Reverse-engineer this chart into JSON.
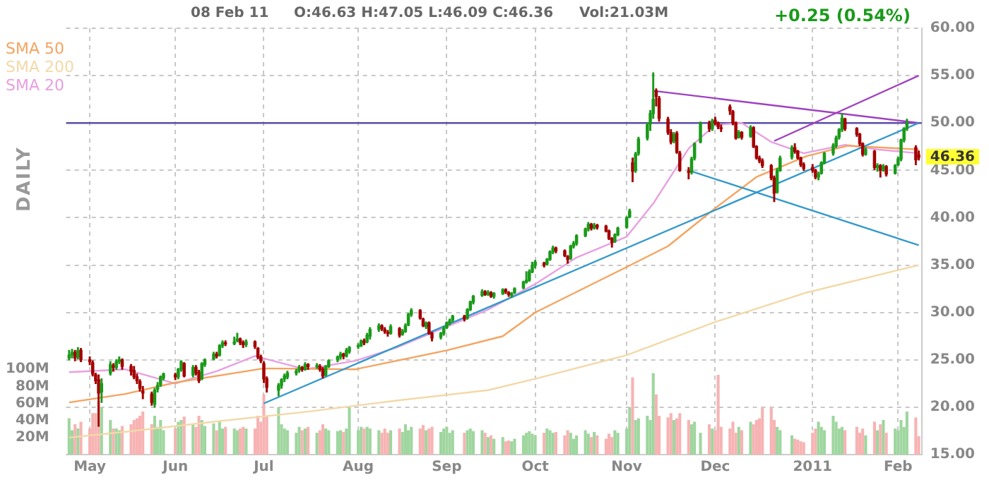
{
  "chart_data": {
    "type": "candlestick",
    "annotations": [
      "08 Feb 11",
      "O:46.63 H:47.05 L:46.09 C:46.36",
      "Vol:21.03M",
      "+0.25 (0.54%)",
      "DAILY",
      "46.36"
    ],
    "x": [
      "2010-04-26",
      "2010-04-27",
      "2010-04-28",
      "2010-04-29",
      "2010-04-30",
      "2010-05-03",
      "2010-05-04",
      "2010-05-05",
      "2010-05-06",
      "2010-05-07",
      "2010-05-10",
      "2010-05-11",
      "2010-05-12",
      "2010-05-13",
      "2010-05-14",
      "2010-05-17",
      "2010-05-18",
      "2010-05-19",
      "2010-05-20",
      "2010-05-21",
      "2010-05-24",
      "2010-05-25",
      "2010-05-26",
      "2010-05-27",
      "2010-05-28",
      "2010-06-01",
      "2010-06-02",
      "2010-06-03",
      "2010-06-04",
      "2010-06-07",
      "2010-06-08",
      "2010-06-09",
      "2010-06-10",
      "2010-06-11",
      "2010-06-14",
      "2010-06-15",
      "2010-06-16",
      "2010-06-17",
      "2010-06-18",
      "2010-06-21",
      "2010-06-22",
      "2010-06-23",
      "2010-06-24",
      "2010-06-25",
      "2010-06-28",
      "2010-06-29",
      "2010-06-30",
      "2010-07-01",
      "2010-07-02",
      "2010-07-06",
      "2010-07-07",
      "2010-07-08",
      "2010-07-09",
      "2010-07-12",
      "2010-07-13",
      "2010-07-14",
      "2010-07-15",
      "2010-07-16",
      "2010-07-19",
      "2010-07-20",
      "2010-07-21",
      "2010-07-22",
      "2010-07-23",
      "2010-07-26",
      "2010-07-27",
      "2010-07-28",
      "2010-07-29",
      "2010-07-30",
      "2010-08-02",
      "2010-08-03",
      "2010-08-04",
      "2010-08-05",
      "2010-08-06",
      "2010-08-09",
      "2010-08-10",
      "2010-08-11",
      "2010-08-12",
      "2010-08-13",
      "2010-08-16",
      "2010-08-17",
      "2010-08-18",
      "2010-08-19",
      "2010-08-20",
      "2010-08-23",
      "2010-08-24",
      "2010-08-25",
      "2010-08-26",
      "2010-08-27",
      "2010-08-30",
      "2010-08-31",
      "2010-09-01",
      "2010-09-02",
      "2010-09-03",
      "2010-09-07",
      "2010-09-08",
      "2010-09-09",
      "2010-09-10",
      "2010-09-13",
      "2010-09-14",
      "2010-09-15",
      "2010-09-16",
      "2010-09-17",
      "2010-09-20",
      "2010-09-21",
      "2010-09-22",
      "2010-09-23",
      "2010-09-24",
      "2010-09-27",
      "2010-09-28",
      "2010-09-29",
      "2010-09-30",
      "2010-10-01",
      "2010-10-04",
      "2010-10-05",
      "2010-10-06",
      "2010-10-07",
      "2010-10-08",
      "2010-10-11",
      "2010-10-12",
      "2010-10-13",
      "2010-10-14",
      "2010-10-15",
      "2010-10-18",
      "2010-10-19",
      "2010-10-20",
      "2010-10-21",
      "2010-10-22",
      "2010-10-25",
      "2010-10-26",
      "2010-10-27",
      "2010-10-28",
      "2010-10-29",
      "2010-11-01",
      "2010-11-02",
      "2010-11-03",
      "2010-11-04",
      "2010-11-05",
      "2010-11-08",
      "2010-11-09",
      "2010-11-10",
      "2010-11-11",
      "2010-11-12",
      "2010-11-15",
      "2010-11-16",
      "2010-11-17",
      "2010-11-18",
      "2010-11-19",
      "2010-11-22",
      "2010-11-23",
      "2010-11-24",
      "2010-11-26",
      "2010-11-29",
      "2010-11-30",
      "2010-12-01",
      "2010-12-02",
      "2010-12-03",
      "2010-12-06",
      "2010-12-07",
      "2010-12-08",
      "2010-12-09",
      "2010-12-10",
      "2010-12-13",
      "2010-12-14",
      "2010-12-15",
      "2010-12-16",
      "2010-12-17",
      "2010-12-20",
      "2010-12-21",
      "2010-12-22",
      "2010-12-23",
      "2010-12-27",
      "2010-12-28",
      "2010-12-29",
      "2010-12-30",
      "2010-12-31",
      "2011-01-03",
      "2011-01-04",
      "2011-01-05",
      "2011-01-06",
      "2011-01-07",
      "2011-01-10",
      "2011-01-11",
      "2011-01-12",
      "2011-01-13",
      "2011-01-14",
      "2011-01-18",
      "2011-01-19",
      "2011-01-20",
      "2011-01-21",
      "2011-01-24",
      "2011-01-25",
      "2011-01-26",
      "2011-01-27",
      "2011-01-28",
      "2011-01-31",
      "2011-02-01",
      "2011-02-02",
      "2011-02-03",
      "2011-02-04",
      "2011-02-07",
      "2011-02-08"
    ],
    "ohlc": [
      [
        25.2,
        26.0,
        25.0,
        25.5
      ],
      [
        25.5,
        26.1,
        25.2,
        25.8
      ],
      [
        25.8,
        26.0,
        24.9,
        25.2
      ],
      [
        25.3,
        26.3,
        25.1,
        26.0
      ],
      [
        26.0,
        26.2,
        24.8,
        25.0
      ],
      [
        25.0,
        25.3,
        24.5,
        24.8
      ],
      [
        24.7,
        24.9,
        23.3,
        23.5
      ],
      [
        23.4,
        23.6,
        22.5,
        22.8
      ],
      [
        22.9,
        23.4,
        18.0,
        21.5
      ],
      [
        21.6,
        23.0,
        20.5,
        22.5
      ],
      [
        23.6,
        24.8,
        23.4,
        24.5
      ],
      [
        24.4,
        24.6,
        23.8,
        24.2
      ],
      [
        24.2,
        25.0,
        24.0,
        24.8
      ],
      [
        24.8,
        25.3,
        24.6,
        25.0
      ],
      [
        25.0,
        25.1,
        24.0,
        24.3
      ],
      [
        24.3,
        24.5,
        23.4,
        23.8
      ],
      [
        23.9,
        24.3,
        23.0,
        23.2
      ],
      [
        23.2,
        23.5,
        22.5,
        22.8
      ],
      [
        22.7,
        22.9,
        21.7,
        22.0
      ],
      [
        21.7,
        22.2,
        20.9,
        21.5
      ],
      [
        21.4,
        21.6,
        20.2,
        20.5
      ],
      [
        20.3,
        22.0,
        20.0,
        21.8
      ],
      [
        21.9,
        22.6,
        21.6,
        22.3
      ],
      [
        22.4,
        23.3,
        22.2,
        23.2
      ],
      [
        23.1,
        23.6,
        22.9,
        23.5
      ],
      [
        23.4,
        23.6,
        22.9,
        23.2
      ],
      [
        23.2,
        24.1,
        23.0,
        24.0
      ],
      [
        24.0,
        24.9,
        23.8,
        24.8
      ],
      [
        24.6,
        24.7,
        23.2,
        23.3
      ],
      [
        23.4,
        24.4,
        23.2,
        24.2
      ],
      [
        24.2,
        24.4,
        23.4,
        23.6
      ],
      [
        23.7,
        23.9,
        22.6,
        22.8
      ],
      [
        23.0,
        24.7,
        22.9,
        24.6
      ],
      [
        24.5,
        25.1,
        24.3,
        25.0
      ],
      [
        25.1,
        25.8,
        25.0,
        25.6
      ],
      [
        25.6,
        25.8,
        25.2,
        25.4
      ],
      [
        25.5,
        26.6,
        25.4,
        26.5
      ],
      [
        26.5,
        27.0,
        26.3,
        26.8
      ],
      [
        26.8,
        27.0,
        26.5,
        26.7
      ],
      [
        26.7,
        27.4,
        26.6,
        26.9
      ],
      [
        27.0,
        27.8,
        26.9,
        27.2
      ],
      [
        27.2,
        27.3,
        26.6,
        26.8
      ],
      [
        26.8,
        27.0,
        26.3,
        26.6
      ],
      [
        26.6,
        27.1,
        26.4,
        26.9
      ],
      [
        26.9,
        27.0,
        26.2,
        26.4
      ],
      [
        26.2,
        26.3,
        25.1,
        25.3
      ],
      [
        25.3,
        25.5,
        24.7,
        24.9
      ],
      [
        24.6,
        24.8,
        22.6,
        23.0
      ],
      [
        23.0,
        23.2,
        21.6,
        22.1
      ],
      [
        21.8,
        22.5,
        21.2,
        22.3
      ],
      [
        22.3,
        23.0,
        22.0,
        22.9
      ],
      [
        23.0,
        23.5,
        22.7,
        23.3
      ],
      [
        23.2,
        23.8,
        23.0,
        23.6
      ],
      [
        23.6,
        24.0,
        23.4,
        23.8
      ],
      [
        23.9,
        24.4,
        23.7,
        24.2
      ],
      [
        24.2,
        24.3,
        23.8,
        24.0
      ],
      [
        24.0,
        24.7,
        23.9,
        24.5
      ],
      [
        24.5,
        24.6,
        24.0,
        24.3
      ],
      [
        24.3,
        24.6,
        24.1,
        24.4
      ],
      [
        24.3,
        24.5,
        23.8,
        24.0
      ],
      [
        24.0,
        24.2,
        23.1,
        23.3
      ],
      [
        23.4,
        24.4,
        23.3,
        24.3
      ],
      [
        24.3,
        25.0,
        24.2,
        24.9
      ],
      [
        25.0,
        25.4,
        24.8,
        25.3
      ],
      [
        25.3,
        25.8,
        25.1,
        25.6
      ],
      [
        25.6,
        25.7,
        25.1,
        25.4
      ],
      [
        25.4,
        26.2,
        25.3,
        26.0
      ],
      [
        25.9,
        26.4,
        25.7,
        26.3
      ],
      [
        26.4,
        26.7,
        26.2,
        26.5
      ],
      [
        26.5,
        27.1,
        26.4,
        27.0
      ],
      [
        27.0,
        27.2,
        26.6,
        26.8
      ],
      [
        26.9,
        27.8,
        26.8,
        27.6
      ],
      [
        27.5,
        28.4,
        27.2,
        28.2
      ],
      [
        28.2,
        28.8,
        28.0,
        28.6
      ],
      [
        28.6,
        28.7,
        28.1,
        28.3
      ],
      [
        28.2,
        28.4,
        27.8,
        28.0
      ],
      [
        27.9,
        28.1,
        27.5,
        27.8
      ],
      [
        27.8,
        28.7,
        27.7,
        28.5
      ],
      [
        28.3,
        28.4,
        27.4,
        27.6
      ],
      [
        27.7,
        28.2,
        27.6,
        28.0
      ],
      [
        28.0,
        28.8,
        27.9,
        28.6
      ],
      [
        28.7,
        29.9,
        28.6,
        29.8
      ],
      [
        29.8,
        30.4,
        29.6,
        30.2
      ],
      [
        30.2,
        30.3,
        29.3,
        29.4
      ],
      [
        29.3,
        29.4,
        28.5,
        28.6
      ],
      [
        28.5,
        29.0,
        28.3,
        28.9
      ],
      [
        28.9,
        29.0,
        27.7,
        27.8
      ],
      [
        27.8,
        27.9,
        27.0,
        27.3
      ],
      [
        27.4,
        27.9,
        27.2,
        27.8
      ],
      [
        27.8,
        28.5,
        27.6,
        28.3
      ],
      [
        28.4,
        29.0,
        28.3,
        28.9
      ],
      [
        28.9,
        29.3,
        28.7,
        29.1
      ],
      [
        29.2,
        29.7,
        29.0,
        29.6
      ],
      [
        29.6,
        29.7,
        29.1,
        29.3
      ],
      [
        29.4,
        30.4,
        29.3,
        30.3
      ],
      [
        30.3,
        31.2,
        30.2,
        31.1
      ],
      [
        31.1,
        31.8,
        30.9,
        31.7
      ],
      [
        31.8,
        32.4,
        31.7,
        32.2
      ],
      [
        32.2,
        32.3,
        31.8,
        31.9
      ],
      [
        31.9,
        32.3,
        31.8,
        32.1
      ],
      [
        32.1,
        32.2,
        31.6,
        31.7
      ],
      [
        31.7,
        32.1,
        31.5,
        32.0
      ],
      [
        32.0,
        32.5,
        31.9,
        32.4
      ],
      [
        32.4,
        32.5,
        32.0,
        32.2
      ],
      [
        32.1,
        32.2,
        31.7,
        31.9
      ],
      [
        31.8,
        32.1,
        31.6,
        32.0
      ],
      [
        32.1,
        32.6,
        32.0,
        32.5
      ],
      [
        32.6,
        33.3,
        32.5,
        33.2
      ],
      [
        33.2,
        34.3,
        33.1,
        33.4
      ],
      [
        33.4,
        34.5,
        33.3,
        34.3
      ],
      [
        34.3,
        35.3,
        34.2,
        35.0
      ],
      [
        35.0,
        35.5,
        34.7,
        35.3
      ],
      [
        35.2,
        35.3,
        34.8,
        35.0
      ],
      [
        35.1,
        35.7,
        35.0,
        35.6
      ],
      [
        35.6,
        36.5,
        35.5,
        36.4
      ],
      [
        36.4,
        37.0,
        36.2,
        36.8
      ],
      [
        36.8,
        36.9,
        36.3,
        36.5
      ],
      [
        36.5,
        36.6,
        35.9,
        36.0
      ],
      [
        35.9,
        36.0,
        35.2,
        35.6
      ],
      [
        35.7,
        37.1,
        35.6,
        37.0
      ],
      [
        37.0,
        37.5,
        36.8,
        37.3
      ],
      [
        37.3,
        38.2,
        37.1,
        38.1
      ],
      [
        38.1,
        38.9,
        38.0,
        38.8
      ],
      [
        38.8,
        39.5,
        38.6,
        39.3
      ],
      [
        39.3,
        39.4,
        38.7,
        38.9
      ],
      [
        38.9,
        39.4,
        38.8,
        39.2
      ],
      [
        39.2,
        39.3,
        38.8,
        39.0
      ],
      [
        39.1,
        39.2,
        38.5,
        38.6
      ],
      [
        38.6,
        38.7,
        37.7,
        37.8
      ],
      [
        37.8,
        37.9,
        36.9,
        37.4
      ],
      [
        37.5,
        38.3,
        37.4,
        38.2
      ],
      [
        38.2,
        39.0,
        38.1,
        38.9
      ],
      [
        39.0,
        40.1,
        38.9,
        40.0
      ],
      [
        40.1,
        40.9,
        40.0,
        40.7
      ],
      [
        45.8,
        46.3,
        43.8,
        44.9
      ],
      [
        45.0,
        46.9,
        44.8,
        46.7
      ],
      [
        46.8,
        48.5,
        46.6,
        48.3
      ],
      [
        48.4,
        50.0,
        48.2,
        49.8
      ],
      [
        49.9,
        51.3,
        49.2,
        51.0
      ],
      [
        51.0,
        55.3,
        50.5,
        52.5
      ],
      [
        53.4,
        53.6,
        51.8,
        52.8
      ],
      [
        52.6,
        52.8,
        50.2,
        50.5
      ],
      [
        50.4,
        50.6,
        48.8,
        49.0
      ],
      [
        49.0,
        49.3,
        47.8,
        48.0
      ],
      [
        48.1,
        49.0,
        47.9,
        48.8
      ],
      [
        48.9,
        49.1,
        46.8,
        46.9
      ],
      [
        46.8,
        47.0,
        44.9,
        45.0
      ],
      [
        44.9,
        45.3,
        44.1,
        44.8
      ],
      [
        44.8,
        46.4,
        44.6,
        46.2
      ],
      [
        46.3,
        47.9,
        46.1,
        47.8
      ],
      [
        48.0,
        50.1,
        47.9,
        50.0
      ],
      [
        50.0,
        50.2,
        49.1,
        49.4
      ],
      [
        49.4,
        50.4,
        49.2,
        50.2
      ],
      [
        50.3,
        50.6,
        49.8,
        50.0
      ],
      [
        50.0,
        50.1,
        49.4,
        49.6
      ],
      [
        49.5,
        49.8,
        49.1,
        49.4
      ],
      [
        51.7,
        51.9,
        50.9,
        51.3
      ],
      [
        51.2,
        51.3,
        49.8,
        50.0
      ],
      [
        50.0,
        50.1,
        48.3,
        48.4
      ],
      [
        48.5,
        49.2,
        48.4,
        49.0
      ],
      [
        49.0,
        49.1,
        48.3,
        48.5
      ],
      [
        48.6,
        49.7,
        48.5,
        49.5
      ],
      [
        49.5,
        49.6,
        47.4,
        47.5
      ],
      [
        47.5,
        47.6,
        46.2,
        46.3
      ],
      [
        46.3,
        46.5,
        45.8,
        46.0
      ],
      [
        46.0,
        46.2,
        45.3,
        45.5
      ],
      [
        45.5,
        45.6,
        44.0,
        44.2
      ],
      [
        44.2,
        44.4,
        41.7,
        42.6
      ],
      [
        42.7,
        45.2,
        42.6,
        45.0
      ],
      [
        45.0,
        46.5,
        44.9,
        46.3
      ],
      [
        46.4,
        47.6,
        46.2,
        47.4
      ],
      [
        47.4,
        47.8,
        46.8,
        47.0
      ],
      [
        47.0,
        47.1,
        46.2,
        46.3
      ],
      [
        46.3,
        46.4,
        45.4,
        45.6
      ],
      [
        45.6,
        45.8,
        45.0,
        45.2
      ],
      [
        45.3,
        45.6,
        44.8,
        45.0
      ],
      [
        45.0,
        45.1,
        44.1,
        44.3
      ],
      [
        44.3,
        44.8,
        44.0,
        44.6
      ],
      [
        44.7,
        45.9,
        44.6,
        45.8
      ],
      [
        45.8,
        46.9,
        45.7,
        46.8
      ],
      [
        46.8,
        47.8,
        46.6,
        47.6
      ],
      [
        47.6,
        48.6,
        47.4,
        48.4
      ],
      [
        48.5,
        49.4,
        48.3,
        49.3
      ],
      [
        49.3,
        51.0,
        49.1,
        50.5
      ],
      [
        50.4,
        50.5,
        49.2,
        49.4
      ],
      [
        49.4,
        49.5,
        48.6,
        48.8
      ],
      [
        48.8,
        48.9,
        47.6,
        47.8
      ],
      [
        47.8,
        47.9,
        46.5,
        46.7
      ],
      [
        46.7,
        47.4,
        46.6,
        47.2
      ],
      [
        47.0,
        47.1,
        45.1,
        45.3
      ],
      [
        45.3,
        45.7,
        44.9,
        45.5
      ],
      [
        45.5,
        45.6,
        44.3,
        45.0
      ],
      [
        45.0,
        45.6,
        44.9,
        45.4
      ],
      [
        45.4,
        45.5,
        44.4,
        44.6
      ],
      [
        44.7,
        45.6,
        44.6,
        45.5
      ],
      [
        45.6,
        46.4,
        45.5,
        46.2
      ],
      [
        46.2,
        48.3,
        46.0,
        48.2
      ],
      [
        48.2,
        49.5,
        48.0,
        49.4
      ],
      [
        49.4,
        50.4,
        49.2,
        49.9
      ],
      [
        47.4,
        47.6,
        45.6,
        46.11
      ],
      [
        46.63,
        47.05,
        46.09,
        46.36
      ]
    ],
    "series": [
      {
        "type": "bar",
        "axis": "y2",
        "values": [
          42,
          28,
          35,
          30,
          38,
          30,
          48,
          48,
          62,
          55,
          40,
          30,
          30,
          28,
          33,
          35,
          40,
          42,
          45,
          50,
          35,
          45,
          32,
          40,
          28,
          30,
          38,
          40,
          44,
          35,
          32,
          45,
          40,
          33,
          36,
          28,
          38,
          30,
          32,
          30,
          28,
          30,
          32,
          30,
          30,
          45,
          38,
          70,
          45,
          55,
          35,
          30,
          28,
          25,
          32,
          28,
          30,
          32,
          25,
          28,
          35,
          30,
          28,
          27,
          28,
          26,
          30,
          55,
          28,
          32,
          30,
          32,
          30,
          28,
          25,
          30,
          25,
          28,
          30,
          26,
          35,
          28,
          32,
          30,
          34,
          28,
          30,
          32,
          26,
          30,
          32,
          25,
          28,
          25,
          28,
          30,
          27,
          28,
          25,
          20,
          22,
          18,
          20,
          15,
          16,
          15,
          18,
          22,
          25,
          27,
          24,
          22,
          25,
          30,
          28,
          25,
          26,
          22,
          28,
          25,
          18,
          22,
          28,
          24,
          20,
          26,
          22,
          18,
          24,
          20,
          28,
          25,
          30,
          55,
          90,
          40,
          42,
          45,
          40,
          95,
          70,
          45,
          43,
          48,
          40,
          42,
          48,
          40,
          35,
          38,
          25,
          35,
          30,
          28,
          93,
          32,
          30,
          38,
          25,
          32,
          28,
          38,
          35,
          40,
          42,
          55,
          55,
          40,
          32,
          28,
          22,
          18,
          17,
          15,
          14,
          25,
          30,
          38,
          32,
          28,
          45,
          38,
          30,
          32,
          28,
          32,
          25,
          30,
          22,
          38,
          28,
          35,
          40,
          25,
          30,
          28,
          40,
          32,
          50,
          43,
          21
        ],
        "colors": [
          "#9fd69f",
          "#9fd69f",
          "#f7b3b3",
          "#9fd69f",
          "#f7b3b3",
          "#f7b3b3",
          "#f7b3b3",
          "#f7b3b3",
          "#f7b3b3",
          "#9fd69f",
          "#9fd69f",
          "#f7b3b3",
          "#9fd69f",
          "#9fd69f",
          "#f7b3b3",
          "#f7b3b3",
          "#f7b3b3",
          "#f7b3b3",
          "#f7b3b3",
          "#f7b3b3",
          "#f7b3b3",
          "#9fd69f",
          "#9fd69f",
          "#9fd69f",
          "#9fd69f",
          "#f7b3b3",
          "#9fd69f",
          "#9fd69f",
          "#f7b3b3",
          "#9fd69f",
          "#f7b3b3",
          "#f7b3b3",
          "#9fd69f",
          "#9fd69f",
          "#9fd69f",
          "#f7b3b3",
          "#9fd69f",
          "#9fd69f",
          "#f7b3b3",
          "#9fd69f",
          "#9fd69f",
          "#f7b3b3",
          "#f7b3b3",
          "#9fd69f",
          "#f7b3b3",
          "#f7b3b3",
          "#f7b3b3",
          "#f7b3b3",
          "#f7b3b3",
          "#9fd69f",
          "#9fd69f",
          "#9fd69f",
          "#9fd69f",
          "#9fd69f",
          "#9fd69f",
          "#f7b3b3",
          "#9fd69f",
          "#f7b3b3",
          "#9fd69f",
          "#f7b3b3",
          "#f7b3b3",
          "#9fd69f",
          "#9fd69f",
          "#9fd69f",
          "#9fd69f",
          "#f7b3b3",
          "#9fd69f",
          "#9fd69f",
          "#9fd69f",
          "#9fd69f",
          "#f7b3b3",
          "#9fd69f",
          "#9fd69f",
          "#9fd69f",
          "#f7b3b3",
          "#f7b3b3",
          "#f7b3b3",
          "#9fd69f",
          "#f7b3b3",
          "#9fd69f",
          "#9fd69f",
          "#9fd69f",
          "#9fd69f",
          "#f7b3b3",
          "#f7b3b3",
          "#9fd69f",
          "#f7b3b3",
          "#f7b3b3",
          "#9fd69f",
          "#9fd69f",
          "#9fd69f",
          "#9fd69f",
          "#9fd69f",
          "#f7b3b3",
          "#9fd69f",
          "#9fd69f",
          "#9fd69f",
          "#9fd69f",
          "#f7b3b3",
          "#9fd69f",
          "#f7b3b3",
          "#9fd69f",
          "#9fd69f",
          "#f7b3b3",
          "#f7b3b3",
          "#9fd69f",
          "#9fd69f",
          "#9fd69f",
          "#9fd69f",
          "#9fd69f",
          "#9fd69f",
          "#9fd69f",
          "#f7b3b3",
          "#9fd69f",
          "#9fd69f",
          "#9fd69f",
          "#f7b3b3",
          "#f7b3b3",
          "#f7b3b3",
          "#9fd69f",
          "#9fd69f",
          "#9fd69f",
          "#9fd69f",
          "#9fd69f",
          "#f7b3b3",
          "#9fd69f",
          "#f7b3b3",
          "#f7b3b3",
          "#f7b3b3",
          "#f7b3b3",
          "#9fd69f",
          "#9fd69f",
          "#9fd69f",
          "#9fd69f",
          "#f7b3b3",
          "#9fd69f",
          "#9fd69f",
          "#9fd69f",
          "#9fd69f",
          "#9fd69f",
          "#f7b3b3",
          "#f7b3b3",
          "#f7b3b3",
          "#f7b3b3",
          "#9fd69f",
          "#f7b3b3",
          "#f7b3b3",
          "#f7b3b3",
          "#9fd69f",
          "#9fd69f",
          "#9fd69f",
          "#f7b3b3",
          "#9fd69f",
          "#f7b3b3",
          "#f7b3b3",
          "#f7b3b3",
          "#f7b3b3",
          "#f7b3b3",
          "#f7b3b3",
          "#9fd69f",
          "#f7b3b3",
          "#9fd69f",
          "#f7b3b3",
          "#f7b3b3",
          "#f7b3b3",
          "#f7b3b3",
          "#f7b3b3",
          "#f7b3b3",
          "#9fd69f",
          "#9fd69f",
          "#9fd69f",
          "#f7b3b3",
          "#f7b3b3",
          "#f7b3b3",
          "#f7b3b3",
          "#f7b3b3",
          "#f7b3b3",
          "#9fd69f",
          "#9fd69f",
          "#9fd69f",
          "#9fd69f",
          "#9fd69f",
          "#9fd69f",
          "#9fd69f",
          "#f7b3b3",
          "#f7b3b3",
          "#f7b3b3",
          "#f7b3b3",
          "#9fd69f",
          "#f7b3b3",
          "#9fd69f",
          "#f7b3b3",
          "#9fd69f",
          "#f7b3b3",
          "#9fd69f",
          "#9fd69f",
          "#9fd69f",
          "#9fd69f",
          "#9fd69f",
          "#f7b3b3",
          "#f7b3b3"
        ]
      },
      {
        "type": "line",
        "name": "SMA 50",
        "color": "#f4a460",
        "x": [
          "2010-04-26",
          "2010-05-15",
          "2010-06-01",
          "2010-07-01",
          "2010-08-01",
          "2010-09-01",
          "2010-09-20",
          "2010-10-01",
          "2010-11-01",
          "2010-11-15",
          "2010-12-01",
          "2010-12-15",
          "2011-01-01",
          "2011-01-15",
          "2011-02-08"
        ],
        "values": [
          20.5,
          21.4,
          22.6,
          24.1,
          24.0,
          26.0,
          27.5,
          30.0,
          34.8,
          37.0,
          41.0,
          44.3,
          46.5,
          47.6,
          47.2
        ]
      },
      {
        "type": "line",
        "name": "SMA 200",
        "color": "#f2d9a8",
        "x": [
          "2010-04-26",
          "2010-05-15",
          "2010-06-15",
          "2010-07-15",
          "2010-08-15",
          "2010-09-15",
          "2010-10-01",
          "2010-11-01",
          "2010-12-01",
          "2011-01-01",
          "2011-02-08"
        ],
        "values": [
          16.8,
          17.4,
          18.5,
          19.5,
          20.7,
          21.8,
          23.0,
          25.5,
          29.0,
          32.1,
          35.0
        ]
      },
      {
        "type": "line",
        "name": "SMA 20",
        "color": "#e8a0e0",
        "x": [
          "2010-04-26",
          "2010-05-15",
          "2010-06-01",
          "2010-06-15",
          "2010-06-28",
          "2010-07-15",
          "2010-08-01",
          "2010-08-15",
          "2010-09-01",
          "2010-09-15",
          "2010-10-01",
          "2010-10-15",
          "2010-11-01",
          "2010-11-10",
          "2010-11-22",
          "2010-12-01",
          "2010-12-10",
          "2010-12-20",
          "2010-12-31",
          "2011-01-14",
          "2011-01-25",
          "2011-02-08"
        ],
        "values": [
          23.7,
          24.0,
          22.5,
          23.8,
          25.4,
          24.0,
          24.9,
          26.3,
          28.5,
          30.3,
          33.0,
          35.8,
          38.0,
          41.5,
          47.3,
          49.8,
          50.0,
          48.0,
          46.8,
          47.7,
          47.2,
          46.8
        ]
      },
      {
        "type": "line",
        "color": "#3399cc",
        "x": [
          "2010-07-01",
          "2011-02-08"
        ],
        "values": [
          20.4,
          50.0
        ]
      },
      {
        "type": "line",
        "color": "#3399cc",
        "x": [
          "2010-11-22",
          "2011-02-08"
        ],
        "values": [
          45.0,
          37.1
        ]
      },
      {
        "type": "line",
        "color": "#a040c0",
        "x": [
          "2010-11-10",
          "2011-02-08"
        ],
        "values": [
          53.4,
          50.0
        ]
      },
      {
        "type": "line",
        "color": "#a040c0",
        "x": [
          "2010-12-21",
          "2011-02-08"
        ],
        "values": [
          48.1,
          55.0
        ]
      }
    ],
    "ref_lines": [
      {
        "axis": "y",
        "value": 50,
        "color": "#5b4fa8"
      }
    ],
    "xlim": [
      "2010-04-25",
      "2011-02-09"
    ],
    "xticks": [
      {
        "value": "2010-05-03",
        "label": "May"
      },
      {
        "value": "2010-06-01",
        "label": "Jun"
      },
      {
        "value": "2010-07-01",
        "label": "Jul"
      },
      {
        "value": "2010-08-02",
        "label": "Aug"
      },
      {
        "value": "2010-09-01",
        "label": "Sep"
      },
      {
        "value": "2010-10-01",
        "label": "Oct"
      },
      {
        "value": "2010-11-01",
        "label": "Nov"
      },
      {
        "value": "2010-12-01",
        "label": "Dec"
      },
      {
        "value": "2011-01-03",
        "label": "2011"
      },
      {
        "value": "2011-02-01",
        "label": "Feb"
      }
    ],
    "ylim": [
      15,
      60
    ],
    "yticks": [
      {
        "value": 15,
        "label": "15.00"
      },
      {
        "value": 20,
        "label": "20.00"
      },
      {
        "value": 25,
        "label": "25.00"
      },
      {
        "value": 30,
        "label": "30.00"
      },
      {
        "value": 35,
        "label": "35.00"
      },
      {
        "value": 40,
        "label": "40.00"
      },
      {
        "value": 45,
        "label": "45.00"
      },
      {
        "value": 50,
        "label": "50.00"
      },
      {
        "value": 55,
        "label": "55.00"
      },
      {
        "value": 60,
        "label": "60.00"
      }
    ],
    "y2lim": [
      0,
      500
    ],
    "y2ticks": [
      {
        "value": 20,
        "label": "20M"
      },
      {
        "value": 40,
        "label": "40M"
      },
      {
        "value": 60,
        "label": "60M"
      },
      {
        "value": 80,
        "label": "80M"
      },
      {
        "value": 100,
        "label": "100M"
      }
    ],
    "grid": true,
    "legend": "top left"
  }
}
